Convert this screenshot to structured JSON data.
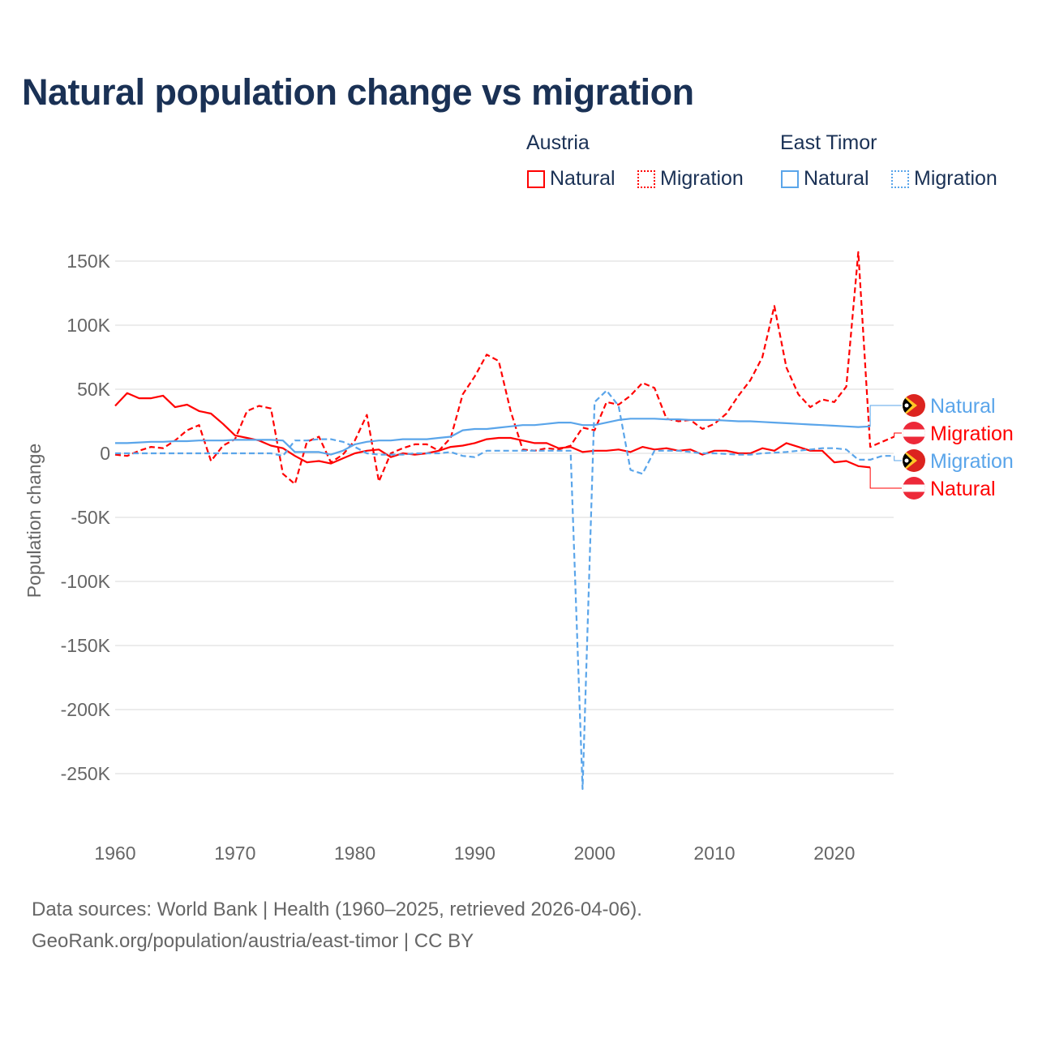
{
  "title": "Natural population change vs migration",
  "legend": {
    "groups": [
      {
        "name": "Austria",
        "items": [
          {
            "label": "Natural",
            "style": "solid",
            "color": "#ff0000"
          },
          {
            "label": "Migration",
            "style": "dotted",
            "color": "#ff0000"
          }
        ]
      },
      {
        "name": "East Timor",
        "items": [
          {
            "label": "Natural",
            "style": "solid",
            "color": "#5aa5ea"
          },
          {
            "label": "Migration",
            "style": "dotted",
            "color": "#5aa5ea"
          }
        ]
      }
    ]
  },
  "footer": {
    "line1": "Data sources: World Bank | Health (1960–2025, retrieved 2026-04-06).",
    "line2": "GeoRank.org/population/austria/east-timor | CC BY"
  },
  "chart_data": {
    "type": "line",
    "title": "Natural population change vs migration",
    "xlabel": "",
    "ylabel": "Population change",
    "xlim": [
      1960,
      2025
    ],
    "ylim": [
      -280,
      170
    ],
    "y_unit": "thousands",
    "xticks": [
      1960,
      1970,
      1980,
      1990,
      2000,
      2010,
      2020
    ],
    "xtick_labels": [
      "1960",
      "1970",
      "1980",
      "1990",
      "2000",
      "2010",
      "2020"
    ],
    "yticks": [
      150,
      100,
      50,
      0,
      -50,
      -100,
      -150,
      -200,
      -250
    ],
    "ytick_labels": [
      "150K",
      "100K",
      "50K",
      "0",
      "-50K",
      "-100K",
      "-150K",
      "-200K",
      "-250K"
    ],
    "grid": true,
    "series": [
      {
        "name": "Austria Natural",
        "end_label": "Natural",
        "color": "#ff0000",
        "dash": false,
        "start": 1960,
        "values": [
          37,
          47,
          43,
          43,
          45,
          36,
          38,
          33,
          31,
          23,
          14,
          12,
          10,
          6,
          4,
          -2,
          -7,
          -6,
          -8,
          -4,
          0,
          2,
          3,
          -3,
          0,
          -1,
          0,
          2,
          5,
          6,
          8,
          11,
          12,
          12,
          10,
          8,
          8,
          4,
          5,
          1,
          2,
          2,
          3,
          1,
          5,
          3,
          4,
          2,
          3,
          -1,
          2,
          2,
          0,
          0,
          4,
          2,
          8,
          5,
          2,
          2,
          -7,
          -6,
          -10,
          -11
        ]
      },
      {
        "name": "Austria Migration",
        "end_label": "Migration",
        "color": "#ff0000",
        "dash": true,
        "start": 1960,
        "values": [
          -1,
          -2,
          2,
          5,
          4,
          10,
          18,
          22,
          -6,
          6,
          11,
          33,
          37,
          35,
          -16,
          -24,
          9,
          13,
          -7,
          -1,
          10,
          30,
          -22,
          0,
          4,
          7,
          7,
          2,
          12,
          46,
          60,
          77,
          72,
          33,
          3,
          2,
          4,
          3,
          6,
          20,
          18,
          40,
          38,
          45,
          55,
          51,
          27,
          25,
          26,
          19,
          23,
          31,
          45,
          57,
          75,
          115,
          67,
          46,
          36,
          42,
          40,
          52,
          157,
          5,
          9,
          13
        ]
      },
      {
        "name": "East Timor Natural",
        "end_label": "Natural",
        "color": "#5aa5ea",
        "dash": false,
        "start": 1960,
        "values": [
          8,
          8,
          8.5,
          9,
          9,
          9.5,
          9.5,
          10,
          10,
          10,
          10.5,
          10.5,
          10.5,
          10.5,
          10,
          1,
          1,
          1,
          -1,
          2,
          7,
          9,
          10,
          10,
          11,
          11,
          11,
          12,
          13,
          18,
          19,
          19,
          20,
          21,
          22,
          22,
          23,
          24,
          24,
          22,
          22,
          24,
          26,
          27,
          27,
          27,
          26.5,
          26.5,
          26,
          26,
          26,
          25.5,
          25,
          25,
          24.5,
          24,
          23.5,
          23,
          22.5,
          22,
          21.5,
          21,
          20.5,
          21
        ]
      },
      {
        "name": "East Timor Migration",
        "end_label": "Migration",
        "color": "#5aa5ea",
        "dash": true,
        "start": 1960,
        "values": [
          0,
          0,
          0,
          0,
          0,
          0,
          0,
          0,
          0,
          0,
          0,
          0,
          0,
          0,
          -2,
          10,
          10,
          11,
          11,
          9,
          5,
          0,
          -1,
          -1,
          -1,
          0,
          0,
          0,
          1,
          -2,
          -3,
          2,
          2,
          2,
          2,
          2,
          2,
          2,
          2,
          -262,
          40,
          49,
          37,
          -13,
          -16,
          2,
          2,
          2,
          1,
          0,
          0,
          -0.5,
          -1,
          -1,
          0,
          0.5,
          1,
          2,
          3,
          4,
          4,
          3,
          -5,
          -5,
          -2,
          -2
        ]
      }
    ]
  }
}
